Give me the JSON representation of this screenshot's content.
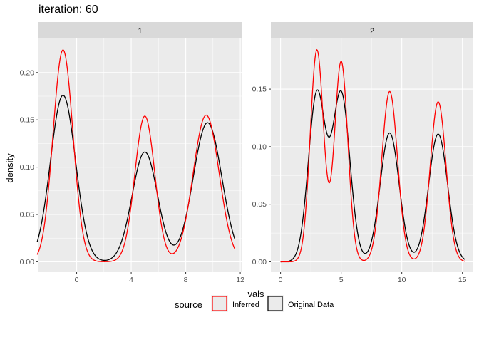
{
  "chart_data": {
    "type": "line",
    "title": "iteration: 60",
    "xlabel": "vals",
    "ylabel": "density",
    "legend": {
      "title": "source",
      "position": "bottom",
      "entries": [
        {
          "label": "Inferred",
          "color": "#ff0000"
        },
        {
          "label": "Original Data",
          "color": "#000000"
        }
      ]
    },
    "colors": {
      "panel_background": "#ebebeb",
      "strip_background": "#d9d9d9",
      "grid_major": "#ffffff",
      "inferred": "#ff0000",
      "original": "#000000"
    },
    "grid": true,
    "panels": [
      {
        "strip": "1",
        "xlim": [
          -2.8,
          12.1
        ],
        "ylim": [
          -0.011,
          0.236
        ],
        "x_ticks": [
          0,
          4,
          8,
          12
        ],
        "x_tick_labels": [
          "0",
          "4",
          "8",
          "12"
        ],
        "y_ticks": [
          0,
          0.05,
          0.1,
          0.15,
          0.2
        ],
        "y_tick_labels": [
          "0.00",
          "0.05",
          "0.10",
          "0.15",
          "0.20"
        ],
        "x_range": [
          -2.9,
          11.6
        ],
        "series": [
          {
            "name": "Inferred",
            "color": "#ff0000",
            "peaks": [
              {
                "center": -1.0,
                "height": 0.224,
                "sd": 0.73
              },
              {
                "center": 5.0,
                "height": 0.154,
                "sd": 0.73
              },
              {
                "center": 9.5,
                "height": 0.155,
                "sd": 0.95
              }
            ]
          },
          {
            "name": "Original Data",
            "color": "#000000",
            "peaks": [
              {
                "center": -1.0,
                "height": 0.176,
                "sd": 0.92
              },
              {
                "center": 5.0,
                "height": 0.116,
                "sd": 0.93
              },
              {
                "center": 9.6,
                "height": 0.147,
                "sd": 1.05
              }
            ]
          }
        ]
      },
      {
        "strip": "2",
        "xlim": [
          -0.8,
          15.9
        ],
        "ylim": [
          -0.009,
          0.194
        ],
        "x_ticks": [
          0,
          5,
          10,
          15
        ],
        "x_tick_labels": [
          "0",
          "5",
          "10",
          "15"
        ],
        "y_ticks": [
          0,
          0.05,
          0.1,
          0.15
        ],
        "y_tick_labels": [
          "0.00",
          "0.05",
          "0.10",
          "0.15"
        ],
        "x_range": [
          0.0,
          15.2
        ],
        "series": [
          {
            "name": "Inferred",
            "color": "#ff0000",
            "peaks": [
              {
                "center": 3.0,
                "height": 0.184,
                "sd": 0.55
              },
              {
                "center": 5.0,
                "height": 0.174,
                "sd": 0.55
              },
              {
                "center": 9.0,
                "height": 0.148,
                "sd": 0.65
              },
              {
                "center": 13.0,
                "height": 0.139,
                "sd": 0.65
              }
            ]
          },
          {
            "name": "Original Data",
            "color": "#000000",
            "peaks": [
              {
                "center": 3.0,
                "height": 0.146,
                "sd": 0.7
              },
              {
                "center": 5.0,
                "height": 0.146,
                "sd": 0.72
              },
              {
                "center": 9.0,
                "height": 0.112,
                "sd": 0.78
              },
              {
                "center": 13.0,
                "height": 0.111,
                "sd": 0.78
              }
            ]
          }
        ]
      }
    ]
  }
}
